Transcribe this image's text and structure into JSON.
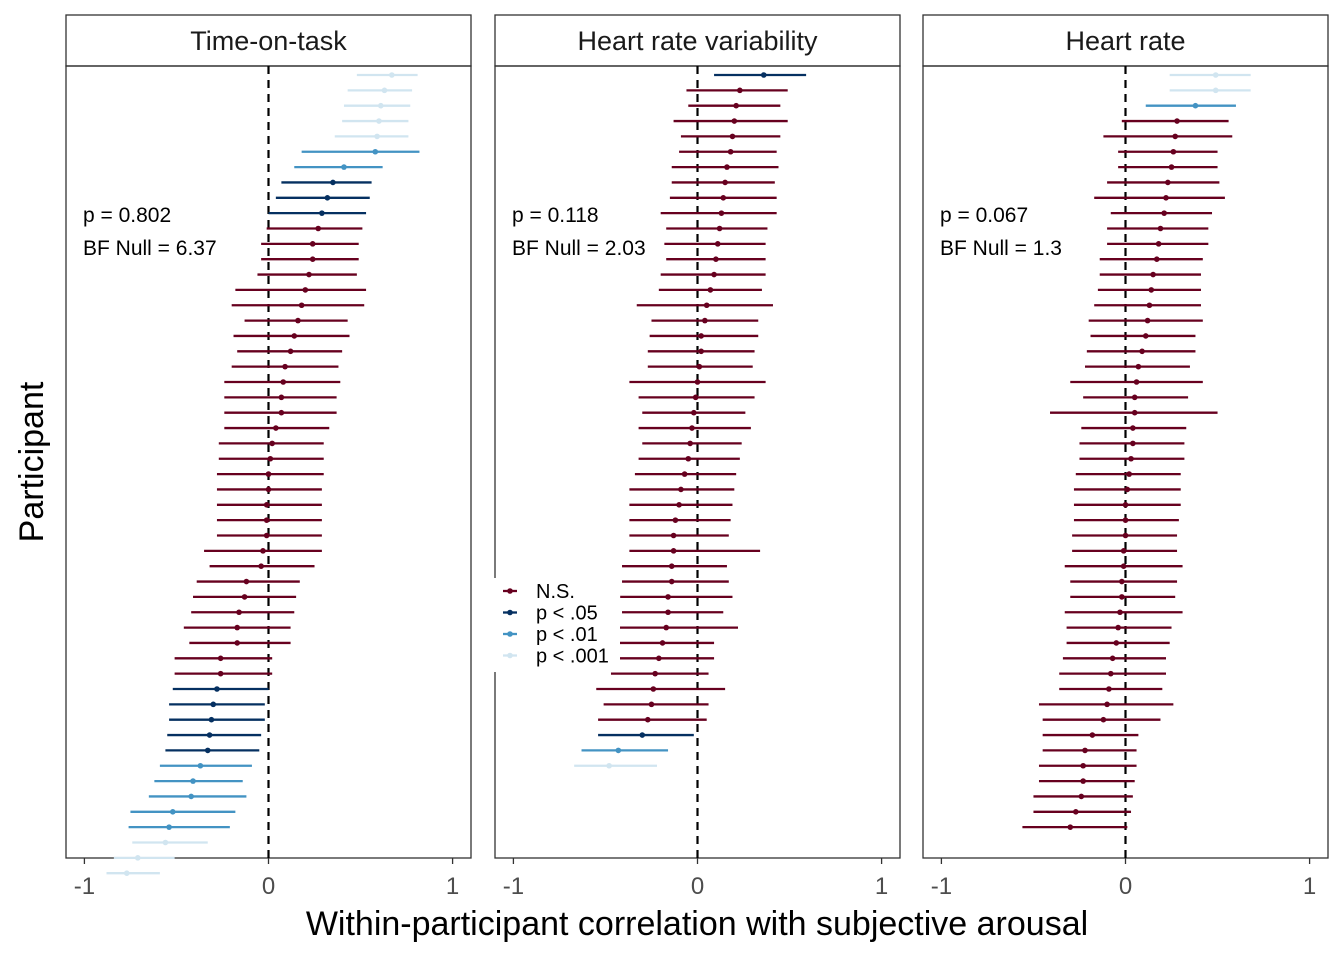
{
  "chart_data": {
    "type": "forest",
    "xlabel": "Within-participant correlation with subjective arousal",
    "ylabel": "Participant",
    "xlim": [
      -1.1,
      1.1
    ],
    "x_ticks": [
      "-1",
      "0",
      "1"
    ],
    "x_tick_values": [
      -1,
      0,
      1
    ],
    "reference_line": 0,
    "grid": false,
    "legend": {
      "position": "left of middle panel, lower",
      "entries": [
        {
          "key": "ns",
          "label": "N.S.",
          "color": "#67001F"
        },
        {
          "key": "p05",
          "label": "p < .05",
          "color": "#053061"
        },
        {
          "key": "p01",
          "label": "p < .01",
          "color": "#4393C3"
        },
        {
          "key": "p001",
          "label": "p < .001",
          "color": "#D1E5F0"
        }
      ]
    },
    "panels": [
      {
        "title": "Time-on-task",
        "annotation_p": "p = 0.802",
        "annotation_bf": "BF Null = 6.37",
        "estimates": [
          {
            "est": 0.67,
            "lo": 0.48,
            "hi": 0.81,
            "sig": "p001"
          },
          {
            "est": 0.63,
            "lo": 0.43,
            "hi": 0.78,
            "sig": "p001"
          },
          {
            "est": 0.61,
            "lo": 0.41,
            "hi": 0.77,
            "sig": "p001"
          },
          {
            "est": 0.6,
            "lo": 0.4,
            "hi": 0.76,
            "sig": "p001"
          },
          {
            "est": 0.59,
            "lo": 0.36,
            "hi": 0.76,
            "sig": "p001"
          },
          {
            "est": 0.58,
            "lo": 0.18,
            "hi": 0.82,
            "sig": "p01"
          },
          {
            "est": 0.41,
            "lo": 0.14,
            "hi": 0.62,
            "sig": "p01"
          },
          {
            "est": 0.35,
            "lo": 0.07,
            "hi": 0.56,
            "sig": "p05"
          },
          {
            "est": 0.32,
            "lo": 0.04,
            "hi": 0.55,
            "sig": "p05"
          },
          {
            "est": 0.29,
            "lo": 0.0,
            "hi": 0.53,
            "sig": "p05"
          },
          {
            "est": 0.27,
            "lo": -0.01,
            "hi": 0.51,
            "sig": "ns"
          },
          {
            "est": 0.24,
            "lo": -0.04,
            "hi": 0.49,
            "sig": "ns"
          },
          {
            "est": 0.24,
            "lo": -0.04,
            "hi": 0.49,
            "sig": "ns"
          },
          {
            "est": 0.22,
            "lo": -0.06,
            "hi": 0.48,
            "sig": "ns"
          },
          {
            "est": 0.2,
            "lo": -0.18,
            "hi": 0.53,
            "sig": "ns"
          },
          {
            "est": 0.18,
            "lo": -0.2,
            "hi": 0.52,
            "sig": "ns"
          },
          {
            "est": 0.16,
            "lo": -0.13,
            "hi": 0.43,
            "sig": "ns"
          },
          {
            "est": 0.14,
            "lo": -0.19,
            "hi": 0.44,
            "sig": "ns"
          },
          {
            "est": 0.12,
            "lo": -0.17,
            "hi": 0.4,
            "sig": "ns"
          },
          {
            "est": 0.09,
            "lo": -0.2,
            "hi": 0.38,
            "sig": "ns"
          },
          {
            "est": 0.08,
            "lo": -0.24,
            "hi": 0.39,
            "sig": "ns"
          },
          {
            "est": 0.07,
            "lo": -0.24,
            "hi": 0.37,
            "sig": "ns"
          },
          {
            "est": 0.07,
            "lo": -0.24,
            "hi": 0.37,
            "sig": "ns"
          },
          {
            "est": 0.04,
            "lo": -0.24,
            "hi": 0.33,
            "sig": "ns"
          },
          {
            "est": 0.02,
            "lo": -0.27,
            "hi": 0.3,
            "sig": "ns"
          },
          {
            "est": 0.01,
            "lo": -0.27,
            "hi": 0.3,
            "sig": "ns"
          },
          {
            "est": 0.0,
            "lo": -0.28,
            "hi": 0.3,
            "sig": "ns"
          },
          {
            "est": 0.0,
            "lo": -0.28,
            "hi": 0.29,
            "sig": "ns"
          },
          {
            "est": -0.01,
            "lo": -0.28,
            "hi": 0.29,
            "sig": "ns"
          },
          {
            "est": -0.01,
            "lo": -0.28,
            "hi": 0.29,
            "sig": "ns"
          },
          {
            "est": -0.01,
            "lo": -0.28,
            "hi": 0.29,
            "sig": "ns"
          },
          {
            "est": -0.03,
            "lo": -0.35,
            "hi": 0.29,
            "sig": "ns"
          },
          {
            "est": -0.04,
            "lo": -0.32,
            "hi": 0.25,
            "sig": "ns"
          },
          {
            "est": -0.12,
            "lo": -0.39,
            "hi": 0.17,
            "sig": "ns"
          },
          {
            "est": -0.13,
            "lo": -0.41,
            "hi": 0.15,
            "sig": "ns"
          },
          {
            "est": -0.16,
            "lo": -0.42,
            "hi": 0.14,
            "sig": "ns"
          },
          {
            "est": -0.17,
            "lo": -0.46,
            "hi": 0.12,
            "sig": "ns"
          },
          {
            "est": -0.17,
            "lo": -0.43,
            "hi": 0.12,
            "sig": "ns"
          },
          {
            "est": -0.26,
            "lo": -0.51,
            "hi": 0.02,
            "sig": "ns"
          },
          {
            "est": -0.26,
            "lo": -0.51,
            "hi": 0.02,
            "sig": "ns"
          },
          {
            "est": -0.28,
            "lo": -0.52,
            "hi": 0.0,
            "sig": "p05"
          },
          {
            "est": -0.3,
            "lo": -0.54,
            "hi": -0.02,
            "sig": "p05"
          },
          {
            "est": -0.31,
            "lo": -0.54,
            "hi": -0.02,
            "sig": "p05"
          },
          {
            "est": -0.32,
            "lo": -0.55,
            "hi": -0.04,
            "sig": "p05"
          },
          {
            "est": -0.33,
            "lo": -0.56,
            "hi": -0.05,
            "sig": "p05"
          },
          {
            "est": -0.37,
            "lo": -0.59,
            "hi": -0.09,
            "sig": "p01"
          },
          {
            "est": -0.41,
            "lo": -0.62,
            "hi": -0.14,
            "sig": "p01"
          },
          {
            "est": -0.42,
            "lo": -0.65,
            "hi": -0.12,
            "sig": "p01"
          },
          {
            "est": -0.52,
            "lo": -0.75,
            "hi": -0.18,
            "sig": "p01"
          },
          {
            "est": -0.54,
            "lo": -0.76,
            "hi": -0.21,
            "sig": "p01"
          },
          {
            "est": -0.56,
            "lo": -0.74,
            "hi": -0.33,
            "sig": "p001"
          },
          {
            "est": -0.71,
            "lo": -0.84,
            "hi": -0.51,
            "sig": "p001"
          },
          {
            "est": -0.77,
            "lo": -0.88,
            "hi": -0.59,
            "sig": "p001"
          }
        ]
      },
      {
        "title": "Heart rate variability",
        "annotation_p": "p = 0.118",
        "annotation_bf": "BF Null = 2.03",
        "estimates": [
          {
            "est": 0.36,
            "lo": 0.09,
            "hi": 0.59,
            "sig": "p05"
          },
          {
            "est": 0.23,
            "lo": -0.06,
            "hi": 0.49,
            "sig": "ns"
          },
          {
            "est": 0.21,
            "lo": -0.05,
            "hi": 0.45,
            "sig": "ns"
          },
          {
            "est": 0.2,
            "lo": -0.13,
            "hi": 0.49,
            "sig": "ns"
          },
          {
            "est": 0.19,
            "lo": -0.09,
            "hi": 0.45,
            "sig": "ns"
          },
          {
            "est": 0.18,
            "lo": -0.1,
            "hi": 0.43,
            "sig": "ns"
          },
          {
            "est": 0.16,
            "lo": -0.14,
            "hi": 0.44,
            "sig": "ns"
          },
          {
            "est": 0.15,
            "lo": -0.14,
            "hi": 0.42,
            "sig": "ns"
          },
          {
            "est": 0.14,
            "lo": -0.15,
            "hi": 0.43,
            "sig": "ns"
          },
          {
            "est": 0.13,
            "lo": -0.2,
            "hi": 0.43,
            "sig": "ns"
          },
          {
            "est": 0.12,
            "lo": -0.17,
            "hi": 0.38,
            "sig": "ns"
          },
          {
            "est": 0.11,
            "lo": -0.18,
            "hi": 0.37,
            "sig": "ns"
          },
          {
            "est": 0.1,
            "lo": -0.17,
            "hi": 0.37,
            "sig": "ns"
          },
          {
            "est": 0.09,
            "lo": -0.2,
            "hi": 0.37,
            "sig": "ns"
          },
          {
            "est": 0.07,
            "lo": -0.21,
            "hi": 0.35,
            "sig": "ns"
          },
          {
            "est": 0.05,
            "lo": -0.33,
            "hi": 0.41,
            "sig": "ns"
          },
          {
            "est": 0.04,
            "lo": -0.25,
            "hi": 0.33,
            "sig": "ns"
          },
          {
            "est": 0.02,
            "lo": -0.26,
            "hi": 0.33,
            "sig": "ns"
          },
          {
            "est": 0.02,
            "lo": -0.27,
            "hi": 0.31,
            "sig": "ns"
          },
          {
            "est": 0.01,
            "lo": -0.27,
            "hi": 0.3,
            "sig": "ns"
          },
          {
            "est": 0.0,
            "lo": -0.37,
            "hi": 0.37,
            "sig": "ns"
          },
          {
            "est": -0.01,
            "lo": -0.32,
            "hi": 0.31,
            "sig": "ns"
          },
          {
            "est": -0.02,
            "lo": -0.3,
            "hi": 0.26,
            "sig": "ns"
          },
          {
            "est": -0.03,
            "lo": -0.32,
            "hi": 0.29,
            "sig": "ns"
          },
          {
            "est": -0.04,
            "lo": -0.3,
            "hi": 0.24,
            "sig": "ns"
          },
          {
            "est": -0.05,
            "lo": -0.32,
            "hi": 0.23,
            "sig": "ns"
          },
          {
            "est": -0.07,
            "lo": -0.34,
            "hi": 0.21,
            "sig": "ns"
          },
          {
            "est": -0.09,
            "lo": -0.37,
            "hi": 0.2,
            "sig": "ns"
          },
          {
            "est": -0.1,
            "lo": -0.37,
            "hi": 0.19,
            "sig": "ns"
          },
          {
            "est": -0.12,
            "lo": -0.37,
            "hi": 0.18,
            "sig": "ns"
          },
          {
            "est": -0.13,
            "lo": -0.37,
            "hi": 0.17,
            "sig": "ns"
          },
          {
            "est": -0.13,
            "lo": -0.37,
            "hi": 0.34,
            "sig": "ns"
          },
          {
            "est": -0.14,
            "lo": -0.41,
            "hi": 0.16,
            "sig": "ns"
          },
          {
            "est": -0.14,
            "lo": -0.41,
            "hi": 0.17,
            "sig": "ns"
          },
          {
            "est": -0.16,
            "lo": -0.42,
            "hi": 0.19,
            "sig": "ns"
          },
          {
            "est": -0.16,
            "lo": -0.41,
            "hi": 0.14,
            "sig": "ns"
          },
          {
            "est": -0.17,
            "lo": -0.5,
            "hi": 0.22,
            "sig": "ns"
          },
          {
            "est": -0.19,
            "lo": -0.45,
            "hi": 0.09,
            "sig": "ns"
          },
          {
            "est": -0.21,
            "lo": -0.46,
            "hi": 0.09,
            "sig": "ns"
          },
          {
            "est": -0.23,
            "lo": -0.47,
            "hi": 0.06,
            "sig": "ns"
          },
          {
            "est": -0.24,
            "lo": -0.55,
            "hi": 0.15,
            "sig": "ns"
          },
          {
            "est": -0.25,
            "lo": -0.51,
            "hi": 0.06,
            "sig": "ns"
          },
          {
            "est": -0.27,
            "lo": -0.54,
            "hi": 0.05,
            "sig": "ns"
          },
          {
            "est": -0.3,
            "lo": -0.54,
            "hi": -0.02,
            "sig": "p05"
          },
          {
            "est": -0.43,
            "lo": -0.63,
            "hi": -0.16,
            "sig": "p01"
          },
          {
            "est": -0.48,
            "lo": -0.67,
            "hi": -0.22,
            "sig": "p001"
          }
        ]
      },
      {
        "title": "Heart rate",
        "annotation_p": "p = 0.067",
        "annotation_bf": "BF Null = 1.3",
        "estimates": [
          {
            "est": 0.49,
            "lo": 0.24,
            "hi": 0.68,
            "sig": "p001"
          },
          {
            "est": 0.49,
            "lo": 0.24,
            "hi": 0.68,
            "sig": "p001"
          },
          {
            "est": 0.38,
            "lo": 0.11,
            "hi": 0.6,
            "sig": "p01"
          },
          {
            "est": 0.28,
            "lo": -0.02,
            "hi": 0.56,
            "sig": "ns"
          },
          {
            "est": 0.27,
            "lo": -0.12,
            "hi": 0.58,
            "sig": "ns"
          },
          {
            "est": 0.26,
            "lo": -0.04,
            "hi": 0.5,
            "sig": "ns"
          },
          {
            "est": 0.25,
            "lo": -0.04,
            "hi": 0.5,
            "sig": "ns"
          },
          {
            "est": 0.23,
            "lo": -0.1,
            "hi": 0.51,
            "sig": "ns"
          },
          {
            "est": 0.22,
            "lo": -0.17,
            "hi": 0.54,
            "sig": "ns"
          },
          {
            "est": 0.21,
            "lo": -0.08,
            "hi": 0.47,
            "sig": "ns"
          },
          {
            "est": 0.19,
            "lo": -0.1,
            "hi": 0.45,
            "sig": "ns"
          },
          {
            "est": 0.18,
            "lo": -0.1,
            "hi": 0.45,
            "sig": "ns"
          },
          {
            "est": 0.17,
            "lo": -0.14,
            "hi": 0.42,
            "sig": "ns"
          },
          {
            "est": 0.15,
            "lo": -0.14,
            "hi": 0.41,
            "sig": "ns"
          },
          {
            "est": 0.14,
            "lo": -0.15,
            "hi": 0.41,
            "sig": "ns"
          },
          {
            "est": 0.13,
            "lo": -0.17,
            "hi": 0.41,
            "sig": "ns"
          },
          {
            "est": 0.12,
            "lo": -0.2,
            "hi": 0.42,
            "sig": "ns"
          },
          {
            "est": 0.11,
            "lo": -0.19,
            "hi": 0.38,
            "sig": "ns"
          },
          {
            "est": 0.09,
            "lo": -0.21,
            "hi": 0.38,
            "sig": "ns"
          },
          {
            "est": 0.07,
            "lo": -0.22,
            "hi": 0.35,
            "sig": "ns"
          },
          {
            "est": 0.06,
            "lo": -0.3,
            "hi": 0.42,
            "sig": "ns"
          },
          {
            "est": 0.05,
            "lo": -0.23,
            "hi": 0.34,
            "sig": "ns"
          },
          {
            "est": 0.05,
            "lo": -0.41,
            "hi": 0.5,
            "sig": "ns"
          },
          {
            "est": 0.04,
            "lo": -0.24,
            "hi": 0.33,
            "sig": "ns"
          },
          {
            "est": 0.04,
            "lo": -0.25,
            "hi": 0.32,
            "sig": "ns"
          },
          {
            "est": 0.03,
            "lo": -0.25,
            "hi": 0.32,
            "sig": "ns"
          },
          {
            "est": 0.02,
            "lo": -0.27,
            "hi": 0.3,
            "sig": "ns"
          },
          {
            "est": 0.01,
            "lo": -0.28,
            "hi": 0.3,
            "sig": "ns"
          },
          {
            "est": 0.0,
            "lo": -0.28,
            "hi": 0.3,
            "sig": "ns"
          },
          {
            "est": 0.0,
            "lo": -0.28,
            "hi": 0.29,
            "sig": "ns"
          },
          {
            "est": 0.0,
            "lo": -0.29,
            "hi": 0.28,
            "sig": "ns"
          },
          {
            "est": -0.01,
            "lo": -0.29,
            "hi": 0.28,
            "sig": "ns"
          },
          {
            "est": -0.01,
            "lo": -0.33,
            "hi": 0.31,
            "sig": "ns"
          },
          {
            "est": -0.02,
            "lo": -0.3,
            "hi": 0.28,
            "sig": "ns"
          },
          {
            "est": -0.02,
            "lo": -0.3,
            "hi": 0.27,
            "sig": "ns"
          },
          {
            "est": -0.03,
            "lo": -0.33,
            "hi": 0.31,
            "sig": "ns"
          },
          {
            "est": -0.04,
            "lo": -0.32,
            "hi": 0.25,
            "sig": "ns"
          },
          {
            "est": -0.05,
            "lo": -0.32,
            "hi": 0.24,
            "sig": "ns"
          },
          {
            "est": -0.07,
            "lo": -0.34,
            "hi": 0.22,
            "sig": "ns"
          },
          {
            "est": -0.08,
            "lo": -0.36,
            "hi": 0.22,
            "sig": "ns"
          },
          {
            "est": -0.09,
            "lo": -0.36,
            "hi": 0.2,
            "sig": "ns"
          },
          {
            "est": -0.1,
            "lo": -0.47,
            "hi": 0.26,
            "sig": "ns"
          },
          {
            "est": -0.12,
            "lo": -0.45,
            "hi": 0.19,
            "sig": "ns"
          },
          {
            "est": -0.18,
            "lo": -0.45,
            "hi": 0.07,
            "sig": "ns"
          },
          {
            "est": -0.22,
            "lo": -0.45,
            "hi": 0.06,
            "sig": "ns"
          },
          {
            "est": -0.23,
            "lo": -0.47,
            "hi": 0.06,
            "sig": "ns"
          },
          {
            "est": -0.23,
            "lo": -0.47,
            "hi": 0.05,
            "sig": "ns"
          },
          {
            "est": -0.24,
            "lo": -0.5,
            "hi": 0.04,
            "sig": "ns"
          },
          {
            "est": -0.27,
            "lo": -0.5,
            "hi": 0.03,
            "sig": "ns"
          },
          {
            "est": -0.3,
            "lo": -0.56,
            "hi": 0.01,
            "sig": "ns"
          }
        ]
      }
    ]
  }
}
